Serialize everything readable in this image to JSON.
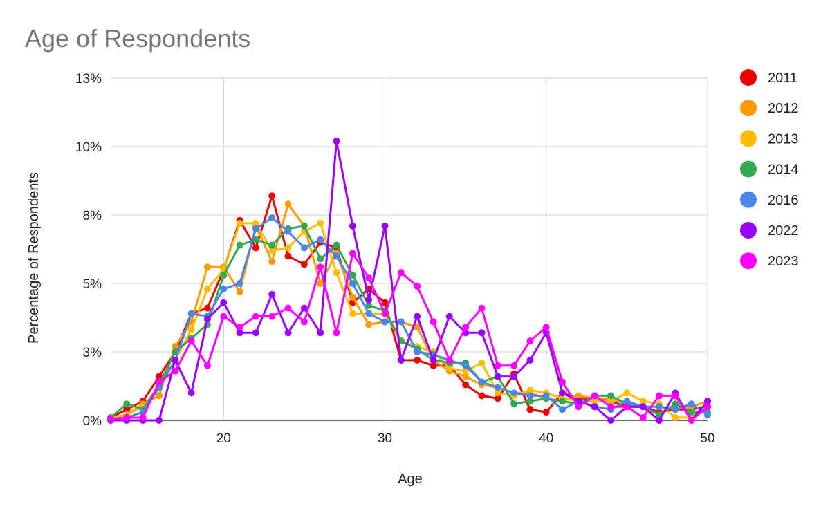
{
  "chart_data": {
    "type": "line",
    "title": "Age of Respondents",
    "xlabel": "Age",
    "ylabel": "Percentage of Respondents",
    "xlim": [
      13,
      50
    ],
    "ylim": [
      0,
      12.5
    ],
    "x_ticks": [
      20,
      30,
      40,
      50
    ],
    "x_tick_labels": [
      "20",
      "30",
      "40",
      "50"
    ],
    "y_ticks": [
      0,
      2.5,
      5,
      7.5,
      10,
      12.5
    ],
    "y_tick_labels": [
      "0%",
      "3%",
      "5%",
      "8%",
      "10%",
      "13%"
    ],
    "grid": true,
    "legend_position": "right",
    "x": [
      13,
      14,
      15,
      16,
      17,
      18,
      19,
      20,
      21,
      22,
      23,
      24,
      25,
      26,
      27,
      28,
      29,
      30,
      31,
      32,
      33,
      34,
      35,
      36,
      37,
      38,
      39,
      40,
      41,
      42,
      43,
      44,
      45,
      46,
      47,
      48,
      49,
      50
    ],
    "series": [
      {
        "name": "2011",
        "color": "#ee0000",
        "values": [
          0.1,
          0.4,
          0.7,
          1.6,
          2.5,
          3.9,
          4.1,
          5.5,
          7.3,
          6.3,
          8.2,
          6.0,
          5.7,
          6.5,
          6.3,
          4.3,
          4.8,
          4.3,
          2.2,
          2.2,
          2.0,
          2.0,
          1.3,
          0.9,
          0.8,
          1.7,
          0.4,
          0.3,
          1.0,
          0.8,
          0.8,
          0.7,
          0.5,
          0.5,
          0.3,
          0.4,
          0.4,
          0.5
        ]
      },
      {
        "name": "2012",
        "color": "#ff9900",
        "values": [
          0.1,
          0.2,
          0.6,
          0.9,
          2.7,
          3.6,
          5.6,
          5.6,
          4.7,
          7.1,
          5.8,
          7.9,
          7.1,
          5.0,
          6.1,
          4.5,
          3.5,
          3.6,
          3.6,
          3.4,
          2.2,
          1.8,
          1.6,
          1.3,
          1.2,
          1.0,
          1.0,
          0.8,
          0.7,
          0.9,
          0.8,
          0.8,
          0.6,
          0.5,
          0.5,
          0.4,
          0.5,
          0.7
        ]
      },
      {
        "name": "2013",
        "color": "#fbbc04",
        "values": [
          0.1,
          0.2,
          0.5,
          1.2,
          2.2,
          3.3,
          4.8,
          5.5,
          7.2,
          7.2,
          6.2,
          6.3,
          6.9,
          7.2,
          5.4,
          3.9,
          3.9,
          3.9,
          2.9,
          2.7,
          2.5,
          1.9,
          1.8,
          2.1,
          1.0,
          0.9,
          1.1,
          1.0,
          0.8,
          0.7,
          0.7,
          0.7,
          1.0,
          0.7,
          0.6,
          0.1,
          0.1,
          0.6
        ]
      },
      {
        "name": "2014",
        "color": "#34a853",
        "values": [
          0.1,
          0.6,
          0.4,
          1.3,
          2.5,
          3.0,
          3.5,
          5.3,
          6.4,
          6.6,
          6.4,
          7.0,
          7.1,
          5.9,
          6.4,
          5.3,
          4.2,
          4.0,
          2.9,
          2.6,
          2.2,
          2.1,
          2.1,
          1.4,
          1.6,
          0.6,
          0.7,
          0.8,
          0.7,
          0.6,
          0.9,
          0.9,
          0.6,
          0.5,
          0.2,
          0.6,
          0.3,
          0.3
        ]
      },
      {
        "name": "2016",
        "color": "#4a86e8",
        "values": [
          0.05,
          0.1,
          0.3,
          1.2,
          2.2,
          3.9,
          3.8,
          4.8,
          5.0,
          7.0,
          7.4,
          6.9,
          6.3,
          6.6,
          6.0,
          5.0,
          3.9,
          3.6,
          3.6,
          2.5,
          2.4,
          2.2,
          2.0,
          1.4,
          1.2,
          1.0,
          0.9,
          0.9,
          0.4,
          0.7,
          0.5,
          0.4,
          0.7,
          0.5,
          0.5,
          0.4,
          0.6,
          0.2
        ]
      },
      {
        "name": "2022",
        "color": "#9900ff",
        "values": [
          0,
          0,
          0,
          0,
          2.2,
          1.0,
          3.7,
          4.3,
          3.2,
          3.2,
          4.6,
          3.2,
          4.1,
          3.2,
          10.2,
          7.1,
          4.4,
          7.1,
          2.2,
          3.8,
          2.2,
          3.8,
          3.2,
          3.2,
          1.6,
          1.6,
          2.2,
          3.2,
          1.0,
          0.7,
          0.5,
          0,
          0.5,
          0.5,
          0,
          1.0,
          0,
          0.7
        ]
      },
      {
        "name": "2023",
        "color": "#ff00ff",
        "values": [
          0.05,
          0.1,
          0.1,
          1.4,
          1.8,
          2.9,
          2.0,
          3.8,
          3.4,
          3.8,
          3.8,
          4.1,
          3.6,
          5.6,
          3.2,
          6.1,
          5.2,
          3.9,
          5.4,
          4.9,
          3.6,
          2.2,
          3.4,
          4.1,
          2.0,
          2.0,
          2.9,
          3.4,
          1.4,
          0.5,
          0.9,
          0.5,
          0.5,
          0.1,
          0.9,
          0.9,
          0,
          0.5
        ]
      }
    ]
  }
}
